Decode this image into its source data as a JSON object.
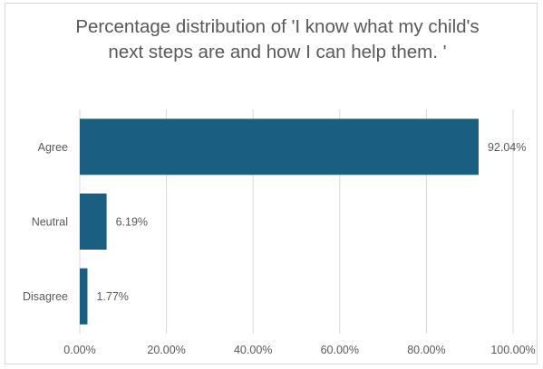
{
  "chart_data": {
    "type": "bar",
    "orientation": "horizontal",
    "title": "Percentage distribution of 'I know what my child's next steps are and how I can help them. '",
    "categories": [
      "Agree",
      "Neutral",
      "Disagree"
    ],
    "values": [
      92.04,
      6.19,
      1.77
    ],
    "value_labels": [
      "92.04%",
      "6.19%",
      "1.77%"
    ],
    "xlim": [
      0,
      100
    ],
    "x_ticks": [
      0,
      20,
      40,
      60,
      80,
      100
    ],
    "x_tick_labels": [
      "0.00%",
      "20.00%",
      "40.00%",
      "60.00%",
      "80.00%",
      "100.00%"
    ],
    "bar_color": "#1a5e82",
    "gridlines": true,
    "legend": "none"
  }
}
